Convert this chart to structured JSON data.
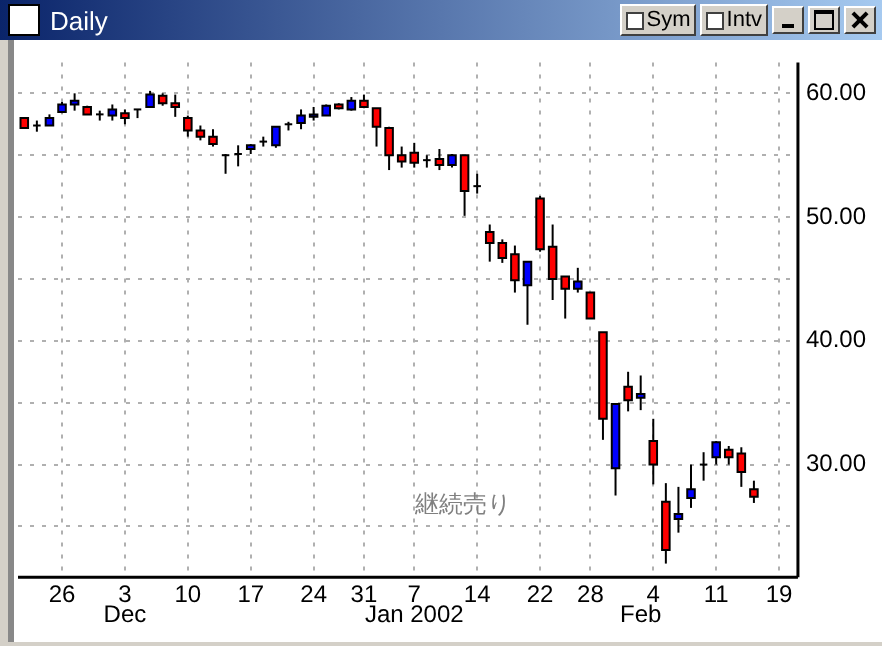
{
  "chart_data": {
    "type": "candlestick",
    "title": "Daily",
    "categories": [
      null,
      null,
      null,
      "26",
      null,
      null,
      null,
      null,
      "3",
      null,
      null,
      null,
      null,
      "10",
      null,
      null,
      null,
      null,
      "17",
      null,
      null,
      null,
      null,
      "24",
      null,
      null,
      null,
      "31",
      null,
      null,
      null,
      "7",
      null,
      null,
      null,
      null,
      "14",
      null,
      null,
      null,
      null,
      "22",
      null,
      null,
      null,
      "28",
      null,
      null,
      null,
      null,
      "4",
      null,
      null,
      null,
      null,
      "11",
      null,
      null,
      null,
      null,
      "19",
      null
    ],
    "ohlc": [
      [
        58.0,
        58.0,
        57.2,
        57.2
      ],
      [
        57.4,
        57.8,
        56.9,
        57.4
      ],
      [
        57.4,
        58.3,
        57.4,
        58.0
      ],
      [
        58.5,
        59.3,
        58.4,
        59.1
      ],
      [
        59.1,
        60.0,
        58.6,
        59.4
      ],
      [
        58.9,
        59.0,
        58.3,
        58.3
      ],
      [
        58.3,
        58.6,
        57.8,
        58.3
      ],
      [
        58.2,
        59.1,
        57.8,
        58.7
      ],
      [
        58.4,
        58.7,
        57.5,
        58.0
      ],
      [
        58.7,
        58.7,
        58.0,
        58.7
      ],
      [
        58.9,
        60.2,
        58.9,
        59.9
      ],
      [
        59.8,
        60.0,
        59.0,
        59.2
      ],
      [
        59.2,
        59.9,
        58.1,
        58.9
      ],
      [
        58.0,
        58.2,
        56.5,
        57.0
      ],
      [
        57.0,
        57.4,
        56.2,
        56.5
      ],
      [
        56.5,
        57.1,
        55.7,
        55.9
      ],
      [
        55.0,
        55.1,
        53.5,
        55.0
      ],
      [
        55.1,
        55.8,
        54.1,
        55.1
      ],
      [
        55.5,
        55.9,
        55.1,
        55.8
      ],
      [
        56.1,
        56.5,
        55.7,
        56.1
      ],
      [
        55.8,
        57.3,
        55.6,
        57.3
      ],
      [
        57.5,
        57.7,
        57.0,
        57.5
      ],
      [
        57.6,
        58.7,
        57.1,
        58.2
      ],
      [
        58.1,
        58.9,
        57.8,
        58.3
      ],
      [
        58.2,
        59.1,
        58.2,
        59.0
      ],
      [
        59.1,
        59.2,
        58.7,
        58.8
      ],
      [
        58.7,
        59.7,
        58.6,
        59.4
      ],
      [
        59.4,
        59.9,
        58.8,
        58.9
      ],
      [
        58.8,
        58.8,
        55.7,
        57.3
      ],
      [
        57.2,
        57.3,
        53.8,
        55.0
      ],
      [
        55.0,
        55.7,
        54.0,
        54.5
      ],
      [
        55.2,
        56.0,
        54.0,
        54.4
      ],
      [
        54.6,
        55.0,
        54.0,
        54.6
      ],
      [
        54.7,
        55.5,
        53.8,
        54.2
      ],
      [
        54.2,
        55.1,
        54.0,
        55.0
      ],
      [
        55.0,
        55.0,
        50.1,
        52.1
      ],
      [
        52.5,
        53.5,
        51.9,
        52.5
      ],
      [
        48.8,
        49.4,
        46.4,
        47.9
      ],
      [
        47.9,
        48.2,
        46.3,
        46.7
      ],
      [
        47.0,
        47.7,
        43.9,
        44.9
      ],
      [
        44.5,
        46.4,
        41.3,
        46.4
      ],
      [
        51.5,
        51.7,
        47.2,
        47.4
      ],
      [
        47.6,
        49.4,
        43.3,
        45.0
      ],
      [
        45.2,
        45.2,
        41.8,
        44.2
      ],
      [
        44.2,
        45.9,
        43.9,
        44.8
      ],
      [
        43.9,
        43.9,
        41.8,
        41.8
      ],
      [
        40.7,
        40.7,
        32.0,
        33.7
      ],
      [
        29.7,
        34.9,
        27.5,
        34.9
      ],
      [
        36.3,
        37.5,
        34.3,
        35.2
      ],
      [
        35.4,
        37.2,
        34.4,
        35.7
      ],
      [
        31.9,
        33.7,
        28.4,
        30.0
      ],
      [
        27.0,
        28.5,
        22.0,
        23.1
      ],
      [
        25.6,
        28.2,
        24.5,
        26.0
      ],
      [
        27.3,
        30.0,
        26.5,
        28.0
      ],
      [
        30.0,
        31.0,
        28.7,
        30.0
      ],
      [
        30.6,
        31.9,
        30.0,
        31.8
      ],
      [
        31.2,
        31.5,
        30.0,
        30.6
      ],
      [
        30.9,
        31.4,
        28.2,
        29.4
      ],
      [
        28.0,
        28.7,
        26.9,
        27.4
      ],
      null,
      null,
      null
    ],
    "colors": [
      "#ff0000",
      "#000000",
      "#0000ff",
      "#0000ff",
      "#0000ff",
      "#ff0000",
      "#000000",
      "#0000ff",
      "#ff0000",
      "#000000",
      "#0000ff",
      "#ff0000",
      "#ff0000",
      "#ff0000",
      "#ff0000",
      "#ff0000",
      "#000000",
      "#000000",
      "#0000ff",
      "#000000",
      "#0000ff",
      "#000000",
      "#0000ff",
      "#0000ff",
      "#0000ff",
      "#ff0000",
      "#0000ff",
      "#ff0000",
      "#ff0000",
      "#ff0000",
      "#ff0000",
      "#ff0000",
      "#000000",
      "#ff0000",
      "#0000ff",
      "#ff0000",
      "#000000",
      "#ff0000",
      "#ff0000",
      "#ff0000",
      "#0000ff",
      "#ff0000",
      "#ff0000",
      "#ff0000",
      "#0000ff",
      "#ff0000",
      "#ff0000",
      "#0000ff",
      "#ff0000",
      "#0000ff",
      "#ff0000",
      "#ff0000",
      "#0000ff",
      "#0000ff",
      "#000000",
      "#0000ff",
      "#ff0000",
      "#ff0000",
      "#ff0000",
      null,
      null,
      null
    ],
    "ylim": [
      20.9,
      62.5
    ],
    "yticks": [
      {
        "value": 25,
        "label": null
      },
      {
        "value": 30,
        "label": "30.00"
      },
      {
        "value": 35,
        "label": null
      },
      {
        "value": 40,
        "label": "40.00"
      },
      {
        "value": 45,
        "label": null
      },
      {
        "value": 50,
        "label": "50.00"
      },
      {
        "value": 55,
        "label": null
      },
      {
        "value": 60,
        "label": "60.00"
      }
    ],
    "grid": true,
    "annotations": [
      "継続売り",
      "Sym",
      "Intv",
      "Dec",
      "Jan 2002",
      "Feb"
    ]
  }
}
